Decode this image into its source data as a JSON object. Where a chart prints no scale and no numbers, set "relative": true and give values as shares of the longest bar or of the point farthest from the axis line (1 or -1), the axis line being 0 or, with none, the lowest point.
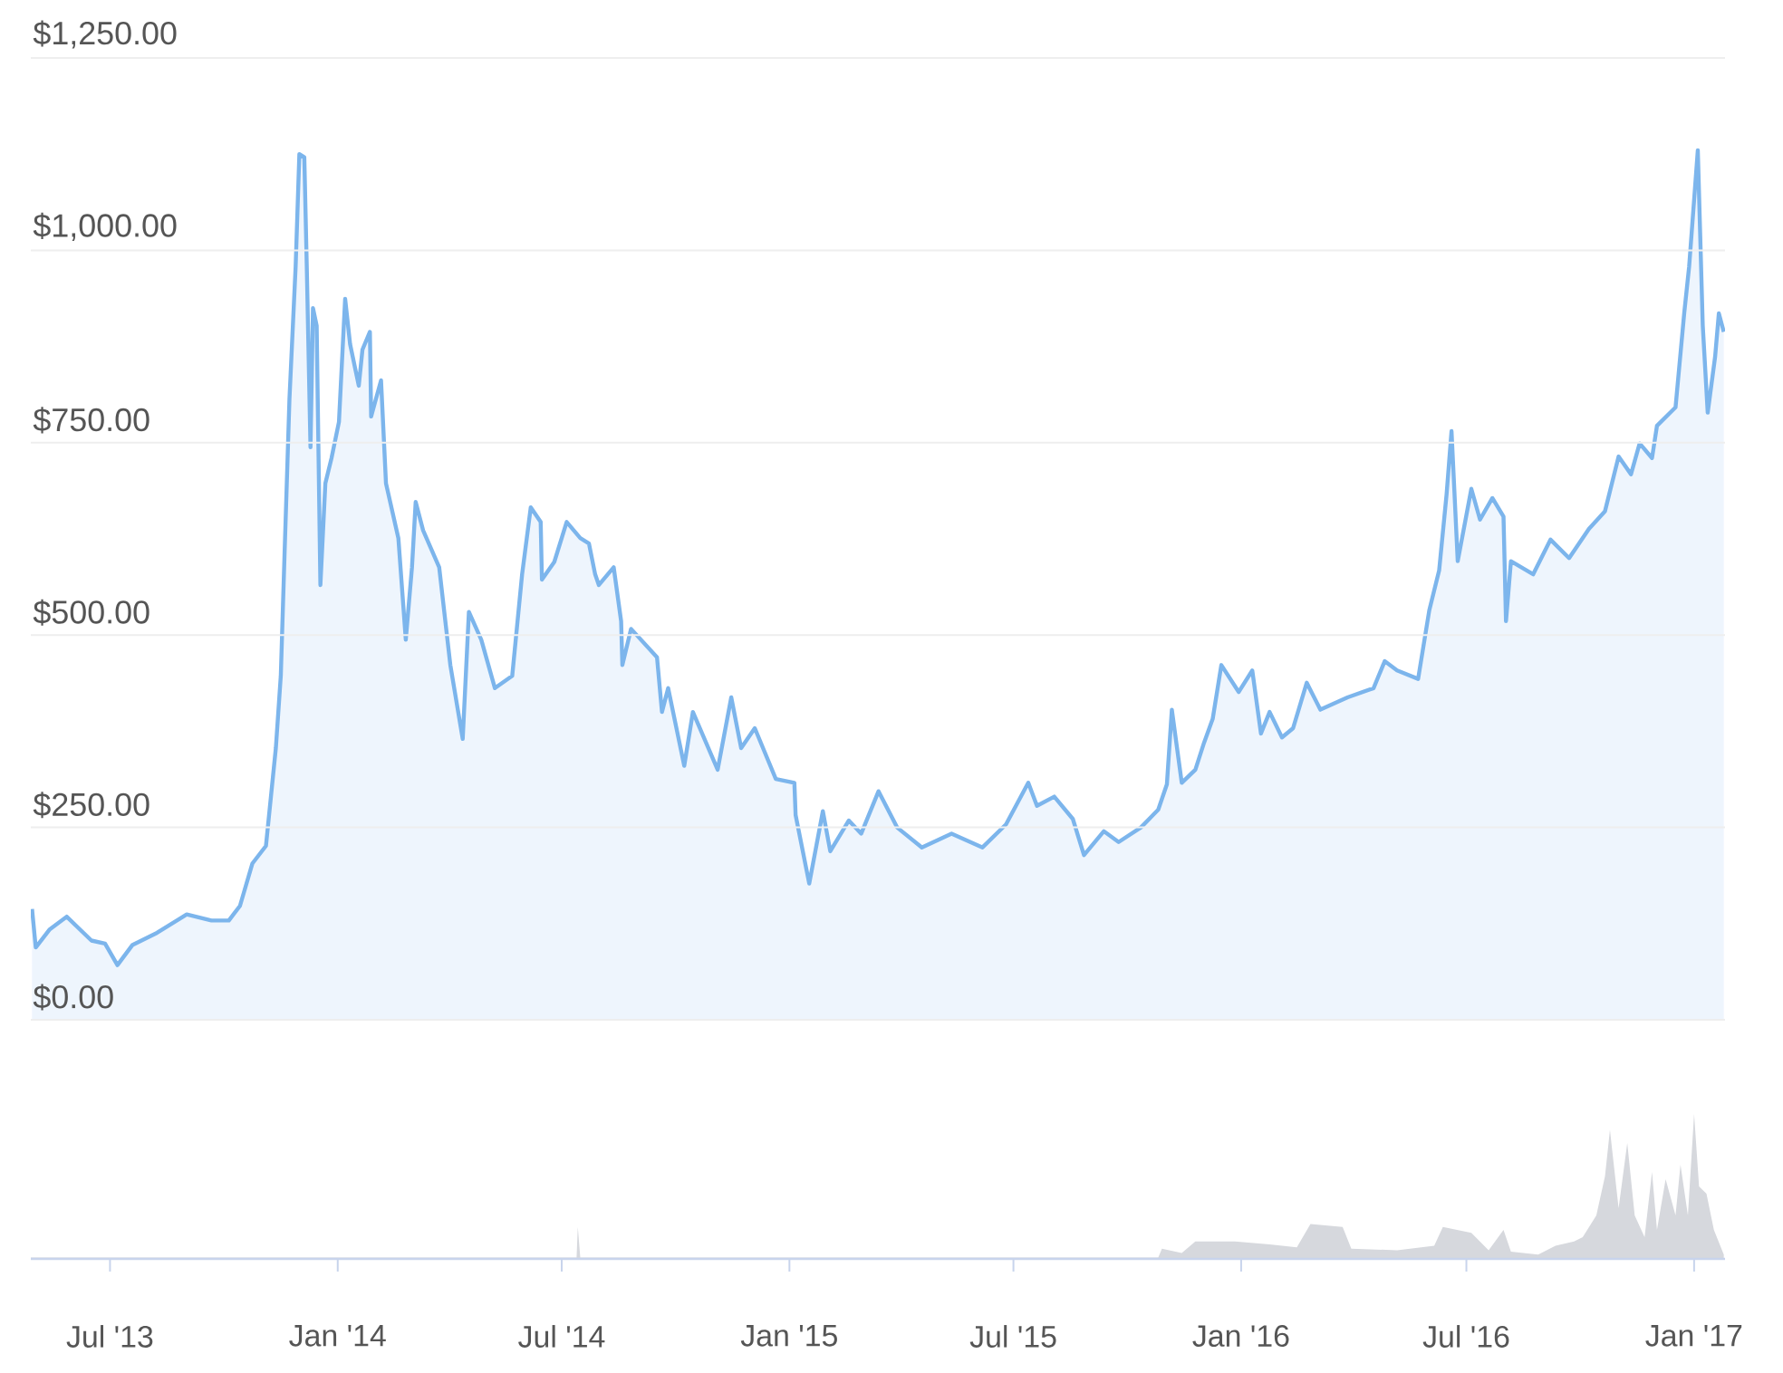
{
  "chart_data": [
    {
      "type": "area",
      "xlim": [
        "2013-04-28",
        "2017-01-26"
      ],
      "ylim": [
        0,
        1250
      ],
      "yticks": [
        {
          "value": 0,
          "label": "$0.00"
        },
        {
          "value": 250,
          "label": "$250.00"
        },
        {
          "value": 500,
          "label": "$500.00"
        },
        {
          "value": 750,
          "label": "$750.00"
        },
        {
          "value": 1000,
          "label": "$1,000.00"
        },
        {
          "value": 1250,
          "label": "$1,250.00"
        }
      ],
      "grid": "y",
      "tick_labels": "y",
      "series": [
        {
          "color": "#7cb5ec",
          "x": [
            "2013-04-29",
            "2013-05-02",
            "2013-05-13",
            "2013-05-27",
            "2013-06-16",
            "2013-06-27",
            "2013-07-07",
            "2013-07-19",
            "2013-08-08",
            "2013-09-01",
            "2013-09-21",
            "2013-10-05",
            "2013-10-14",
            "2013-10-24",
            "2013-11-04",
            "2013-11-12",
            "2013-11-16",
            "2013-11-19",
            "2013-11-23",
            "2013-11-28",
            "2013-12-01",
            "2013-12-05",
            "2013-12-07",
            "2013-12-10",
            "2013-12-12",
            "2013-12-15",
            "2013-12-18",
            "2013-12-22",
            "2013-12-27",
            "2014-01-02",
            "2014-01-07",
            "2014-01-11",
            "2014-01-18",
            "2014-01-21",
            "2014-01-27",
            "2014-01-28",
            "2014-02-05",
            "2014-02-09",
            "2014-02-19",
            "2014-02-25",
            "2014-03-02",
            "2014-03-05",
            "2014-03-11",
            "2014-03-24",
            "2014-04-02",
            "2014-04-12",
            "2014-04-17",
            "2014-04-27",
            "2014-05-08",
            "2014-05-22",
            "2014-05-30",
            "2014-06-06",
            "2014-06-14",
            "2014-06-15",
            "2014-06-25",
            "2014-07-05",
            "2014-07-16",
            "2014-07-23",
            "2014-07-28",
            "2014-07-31",
            "2014-08-12",
            "2014-08-18",
            "2014-08-19",
            "2014-08-26",
            "2014-09-16",
            "2014-09-20",
            "2014-09-25",
            "2014-10-08",
            "2014-10-15",
            "2014-11-04",
            "2014-11-15",
            "2014-11-23",
            "2014-12-04",
            "2014-12-21",
            "2015-01-05",
            "2015-01-06",
            "2015-01-17",
            "2015-01-28",
            "2015-02-03",
            "2015-02-18",
            "2015-02-28",
            "2015-03-14",
            "2015-03-29",
            "2015-04-18",
            "2015-05-12",
            "2015-06-06",
            "2015-06-25",
            "2015-07-13",
            "2015-07-20",
            "2015-08-03",
            "2015-08-18",
            "2015-08-27",
            "2015-09-12",
            "2015-09-24",
            "2015-10-12",
            "2015-10-26",
            "2015-11-02",
            "2015-11-06",
            "2015-11-14",
            "2015-11-25",
            "2015-12-02",
            "2015-12-09",
            "2015-12-16",
            "2015-12-30",
            "2016-01-10",
            "2016-01-17",
            "2016-01-24",
            "2016-02-03",
            "2016-02-12",
            "2016-02-23",
            "2016-03-05",
            "2016-03-27",
            "2016-04-17",
            "2016-04-26",
            "2016-05-06",
            "2016-05-23",
            "2016-06-01",
            "2016-06-09",
            "2016-06-15",
            "2016-06-19",
            "2016-06-24",
            "2016-07-05",
            "2016-07-12",
            "2016-07-22",
            "2016-07-31",
            "2016-08-02",
            "2016-08-06",
            "2016-08-24",
            "2016-09-07",
            "2016-09-22",
            "2016-10-08",
            "2016-10-21",
            "2016-11-01",
            "2016-11-11",
            "2016-11-18",
            "2016-11-28",
            "2016-12-02",
            "2016-12-17",
            "2016-12-24",
            "2016-12-28",
            "2017-01-04",
            "2017-01-08",
            "2017-01-12",
            "2017-01-18",
            "2017-01-21",
            "2017-01-25"
          ],
          "values": [
            144,
            94,
            117,
            134,
            103,
            99,
            71,
            97,
            113,
            137,
            129,
            129,
            148,
            203,
            226,
            353,
            447,
            603,
            807,
            979,
            1125,
            1121,
            979,
            744,
            925,
            902,
            565,
            697,
            730,
            777,
            937,
            878,
            824,
            871,
            894,
            784,
            831,
            697,
            626,
            494,
            588,
            673,
            636,
            588,
            461,
            365,
            530,
            494,
            431,
            447,
            579,
            666,
            647,
            572,
            595,
            647,
            626,
            619,
            579,
            565,
            588,
            518,
            461,
            508,
            471,
            400,
            431,
            330,
            400,
            325,
            419,
            353,
            379,
            313,
            308,
            266,
            177,
            271,
            219,
            259,
            242,
            297,
            250,
            224,
            242,
            224,
            254,
            308,
            278,
            290,
            261,
            214,
            245,
            231,
            250,
            273,
            306,
            403,
            308,
            325,
            360,
            391,
            461,
            426,
            454,
            372,
            400,
            367,
            379,
            438,
            403,
            419,
            431,
            466,
            454,
            443,
            532,
            584,
            683,
            765,
            596,
            690,
            650,
            678,
            654,
            518,
            596,
            579,
            624,
            600,
            638,
            661,
            732,
            709,
            749,
            730,
            772,
            796,
            918,
            979,
            1130,
            902,
            789,
            862,
            918,
            894
          ]
        }
      ]
    },
    {
      "type": "area",
      "relative": true,
      "xlim": [
        "2013-04-28",
        "2017-01-26"
      ],
      "xticks": [
        {
          "value": "2013-07-01",
          "label": "Jul '13"
        },
        {
          "value": "2014-01-01",
          "label": "Jan '14"
        },
        {
          "value": "2014-07-01",
          "label": "Jul '14"
        },
        {
          "value": "2015-01-01",
          "label": "Jan '15"
        },
        {
          "value": "2015-07-01",
          "label": "Jul '15"
        },
        {
          "value": "2016-01-01",
          "label": "Jan '16"
        },
        {
          "value": "2016-07-01",
          "label": "Jul '16"
        },
        {
          "value": "2017-01-01",
          "label": "Jan '17"
        }
      ],
      "tick_labels": "x",
      "series": [
        {
          "color": "#d6d8dd",
          "x": [
            "2013-04-28",
            "2014-06-17",
            "2014-07-13",
            "2014-07-14",
            "2014-07-16",
            "2015-09-01",
            "2015-10-26",
            "2015-10-29",
            "2015-11-14",
            "2015-11-25",
            "2015-12-27",
            "2016-01-24",
            "2016-02-15",
            "2016-02-26",
            "2016-03-23",
            "2016-03-30",
            "2016-05-06",
            "2016-06-05",
            "2016-06-12",
            "2016-07-05",
            "2016-07-19",
            "2016-07-31",
            "2016-08-06",
            "2016-08-28",
            "2016-09-11",
            "2016-09-26",
            "2016-10-03",
            "2016-10-14",
            "2016-10-21",
            "2016-10-25",
            "2016-11-01",
            "2016-11-08",
            "2016-11-14",
            "2016-11-22",
            "2016-11-28",
            "2016-12-02",
            "2016-12-09",
            "2016-12-17",
            "2016-12-21",
            "2016-12-27",
            "2017-01-01",
            "2017-01-05",
            "2017-01-11",
            "2017-01-17",
            "2017-01-25"
          ],
          "values": [
            0.01,
            0.01,
            0.01,
            0.22,
            0.01,
            0.01,
            0.01,
            0.07,
            0.04,
            0.12,
            0.12,
            0.1,
            0.08,
            0.24,
            0.22,
            0.07,
            0.06,
            0.09,
            0.22,
            0.18,
            0.06,
            0.2,
            0.05,
            0.03,
            0.09,
            0.12,
            0.15,
            0.3,
            0.57,
            0.89,
            0.35,
            0.8,
            0.3,
            0.15,
            0.6,
            0.2,
            0.55,
            0.3,
            0.65,
            0.3,
            1.0,
            0.5,
            0.45,
            0.2,
            0.03
          ]
        }
      ]
    }
  ]
}
